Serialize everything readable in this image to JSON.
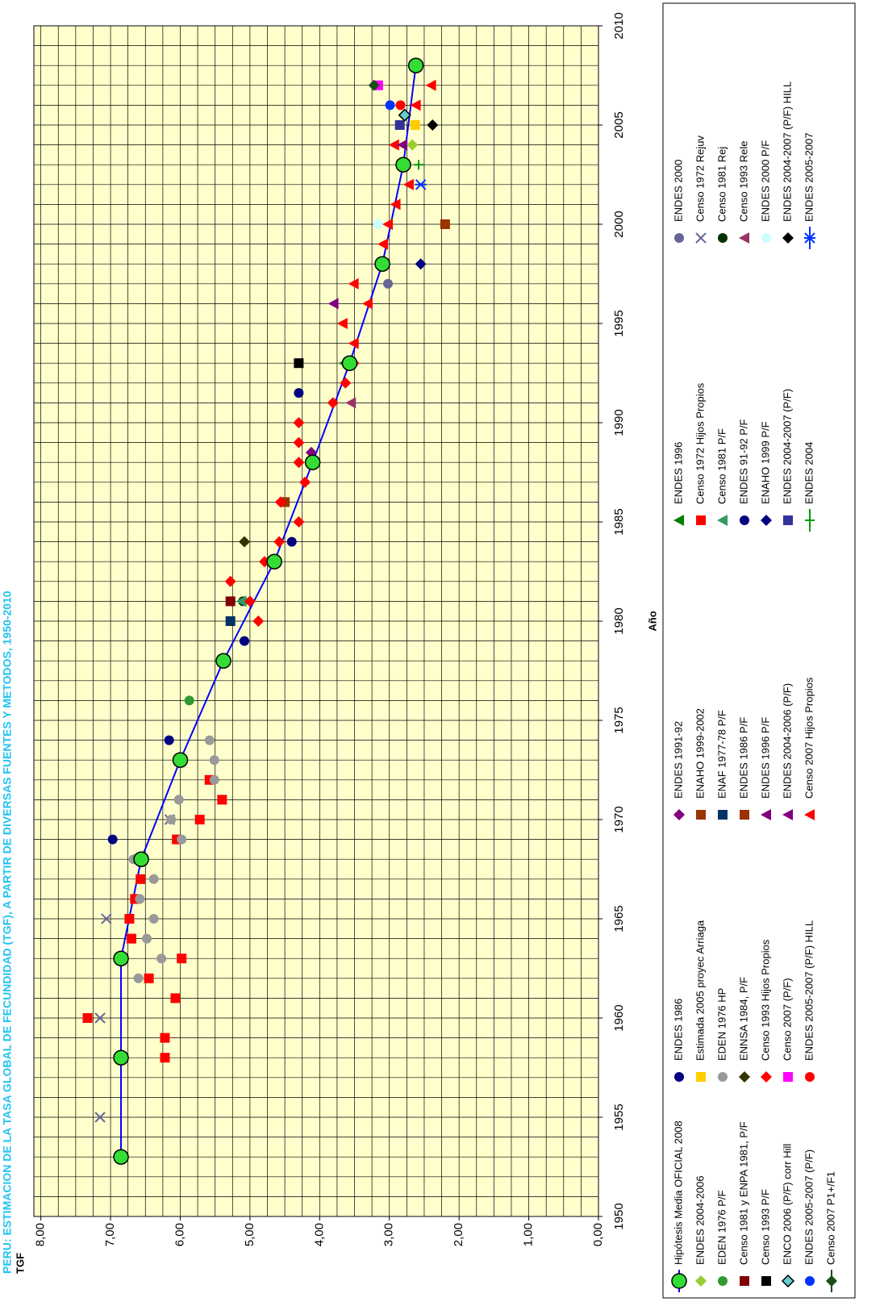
{
  "chart_data": {
    "type": "scatter",
    "title": "PERU: ESTIMACION DE LA TASA GLOBAL DE FECUNDIDAD (TGF), A PARTIR DE DIVERSAS FUENTES Y METODOS, 1950-2010",
    "ylabel": "TGF",
    "xlabel": "Año",
    "xlim": [
      1950,
      2010
    ],
    "ylim": [
      0,
      8.1
    ],
    "xticks": [
      1950,
      1955,
      1960,
      1965,
      1970,
      1975,
      1980,
      1985,
      1990,
      1995,
      2000,
      2005,
      2010
    ],
    "yticks": [
      {
        "value": 0,
        "label": "0,00"
      },
      {
        "value": 1,
        "label": "1,00"
      },
      {
        "value": 2,
        "label": "2,00"
      },
      {
        "value": 3,
        "label": "3,00"
      },
      {
        "value": 4,
        "label": "4,00"
      },
      {
        "value": 5,
        "label": "5,00"
      },
      {
        "value": 6,
        "label": "6,00"
      },
      {
        "value": 7,
        "label": "7,00"
      },
      {
        "value": 8,
        "label": "8,00"
      }
    ],
    "ygrid": [
      0,
      0.25,
      0.5,
      0.75,
      1,
      1.25,
      1.5,
      1.75,
      2,
      2.25,
      2.5,
      2.75,
      3,
      3.25,
      3.5,
      3.75,
      4,
      4.25,
      4.5,
      4.75,
      5,
      5.25,
      5.5,
      5.75,
      6,
      6.25,
      6.5,
      6.75,
      7,
      7.25,
      7.5,
      7.75,
      8
    ],
    "xgrid": [
      1950,
      1951,
      1952,
      1953,
      1954,
      1955,
      1956,
      1957,
      1958,
      1959,
      1960,
      1961,
      1962,
      1963,
      1964,
      1965,
      1966,
      1967,
      1968,
      1969,
      1970,
      1971,
      1972,
      1973,
      1974,
      1975,
      1976,
      1977,
      1978,
      1979,
      1980,
      1981,
      1982,
      1983,
      1984,
      1985,
      1986,
      1987,
      1988,
      1989,
      1990,
      1991,
      1992,
      1993,
      1994,
      1995,
      1996,
      1997,
      1998,
      1999,
      2000,
      2001,
      2002,
      2003,
      2004,
      2005,
      2006,
      2007,
      2008,
      2009,
      2010
    ],
    "grid": true,
    "background": "#ffffcc",
    "series": [
      {
        "name": "Hipótesis Media OFICIAL 2008",
        "color": "#0000ff",
        "marker_color": "#33dd33",
        "marker": "circle",
        "line": true,
        "x": [
          1953,
          1958,
          1963,
          1968,
          1973,
          1978,
          1983,
          1988,
          1993,
          1998,
          2003,
          2008
        ],
        "values": [
          6.85,
          6.85,
          6.85,
          6.56,
          6.0,
          5.38,
          4.65,
          4.1,
          3.57,
          3.1,
          2.8,
          2.62
        ]
      },
      {
        "name": "ENDES 2004-2006",
        "color": "#99cc33",
        "marker": "diamond",
        "x": [
          2004
        ],
        "values": [
          2.67
        ]
      },
      {
        "name": "EDEN 1976 P/F",
        "color": "#339933",
        "marker": "circle",
        "x": [
          1976
        ],
        "values": [
          5.87
        ]
      },
      {
        "name": "Censo 1981 y ENPA 1981, P/F",
        "color": "#800000",
        "marker": "square",
        "x": [
          1981
        ],
        "values": [
          5.28
        ]
      },
      {
        "name": "Censo 1993 P/F",
        "color": "#000000",
        "marker": "square",
        "x": [
          1993
        ],
        "values": [
          4.3
        ]
      },
      {
        "name": "ENCO 2006 (P/F) corr Hill",
        "color": "#66cccc",
        "marker": "diamond",
        "x": [
          2005.5
        ],
        "values": [
          2.78
        ]
      },
      {
        "name": "ENDES 2005-2007 (P/F)",
        "color": "#0033ff",
        "marker": "circle",
        "x": [
          2006
        ],
        "values": [
          2.99
        ]
      },
      {
        "name": "Censo 2007 P1+/F1",
        "color": "#1a4d1a",
        "marker": "diamond",
        "line": true,
        "x": [
          2007
        ],
        "values": [
          3.22
        ]
      },
      {
        "name": "ENDES 1986",
        "color": "#000080",
        "marker": "circle",
        "x": [
          1969,
          1974,
          1979,
          1984
        ],
        "values": [
          6.97,
          6.16,
          5.08,
          4.4
        ]
      },
      {
        "name": "Estimada 2005 proyec Arriaga",
        "color": "#ffcc00",
        "marker": "square",
        "x": [
          2005
        ],
        "values": [
          2.63
        ]
      },
      {
        "name": "EDEN 1976 HP",
        "color": "#999999",
        "marker": "circle",
        "x": [
          1962,
          1963,
          1964,
          1965,
          1966,
          1967,
          1968,
          1969,
          1970,
          1971,
          1972,
          1973,
          1974
        ],
        "values": [
          6.6,
          6.27,
          6.48,
          6.38,
          6.58,
          6.38,
          6.67,
          5.98,
          6.13,
          6.02,
          5.51,
          5.51,
          5.58
        ]
      },
      {
        "name": "ENNSA 1984, P/F",
        "color": "#333300",
        "marker": "diamond",
        "x": [
          1984
        ],
        "values": [
          5.08
        ]
      },
      {
        "name": "Censo 1993 Hijos Propios",
        "color": "#ff0000",
        "marker": "diamond",
        "x": [
          1980,
          1981,
          1982,
          1983,
          1984,
          1985,
          1986,
          1987,
          1988,
          1989,
          1990,
          1991,
          1992,
          1993
        ],
        "values": [
          4.88,
          5.0,
          5.28,
          4.79,
          4.58,
          4.3,
          4.56,
          4.21,
          4.3,
          4.3,
          4.3,
          3.81,
          3.63,
          3.51
        ]
      },
      {
        "name": "Censo 2007 (P/F)",
        "color": "#ff00ff",
        "marker": "square",
        "x": [
          2007
        ],
        "values": [
          3.16
        ]
      },
      {
        "name": "ENDES 2005-2007 (P/F) HILL",
        "color": "#ff0000",
        "marker": "circle",
        "x": [
          2006
        ],
        "values": [
          2.84
        ]
      },
      {
        "name": "ENDES 1991-92",
        "color": "#800080",
        "marker": "diamond",
        "x": [
          1988.5
        ],
        "values": [
          4.12
        ]
      },
      {
        "name": "ENAHO 1999-2002",
        "color": "#993300",
        "marker": "square",
        "x": [
          2000
        ],
        "values": [
          2.2
        ]
      },
      {
        "name": "ENAF 1977-78 P/F",
        "color": "#003366",
        "marker": "square",
        "x": [
          1980
        ],
        "values": [
          5.28
        ]
      },
      {
        "name": "ENDES 1986 P/F",
        "color": "#993300",
        "marker": "square",
        "x": [
          1986
        ],
        "values": [
          4.5
        ]
      },
      {
        "name": "ENDES 1996 P/F",
        "color": "#800080",
        "marker": "triangle",
        "x": [
          1996
        ],
        "values": [
          3.8
        ]
      },
      {
        "name": "ENDES 2004-2006 (P/F)",
        "color": "#800080",
        "marker": "triangle",
        "x": [
          2004
        ],
        "values": [
          2.81
        ]
      },
      {
        "name": "Censo 2007 Hijos Propios",
        "color": "#ff0000",
        "marker": "triangle",
        "x": [
          1994,
          1995,
          1996,
          1997,
          1998,
          1999,
          2000,
          2001,
          2002,
          2004,
          2006,
          2007
        ],
        "values": [
          3.51,
          3.67,
          3.31,
          3.51,
          3.07,
          3.09,
          3.02,
          2.91,
          2.72,
          2.93,
          2.62,
          2.4
        ]
      },
      {
        "name": "ENDES 1996",
        "color": "#008000",
        "marker": "triangle",
        "x": [
          1993
        ],
        "values": [
          3.65
        ]
      },
      {
        "name": "Censo 1972 Hijos Propios",
        "color": "#ff0000",
        "marker": "square",
        "x": [
          1958,
          1959,
          1960,
          1961,
          1962,
          1963,
          1964,
          1965,
          1966,
          1967,
          1968,
          1969,
          1970,
          1971,
          1972
        ],
        "values": [
          6.22,
          6.22,
          7.33,
          6.07,
          6.45,
          5.98,
          6.7,
          6.73,
          6.65,
          6.57,
          6.59,
          6.05,
          5.72,
          5.4,
          5.58
        ]
      },
      {
        "name": "Censo 1981 P/F",
        "color": "#339966",
        "marker": "triangle",
        "x": [
          1981
        ],
        "values": [
          5.12
        ]
      },
      {
        "name": "ENDES 91-92 P/F",
        "color": "#000080",
        "marker": "circle",
        "x": [
          1991.5
        ],
        "values": [
          4.3
        ]
      },
      {
        "name": "ENAHO 1999 P/F",
        "color": "#000080",
        "marker": "diamond",
        "x": [
          1998
        ],
        "values": [
          2.55
        ]
      },
      {
        "name": "ENDES 2004-2007 (P/F)",
        "color": "#333399",
        "marker": "square",
        "x": [
          2005
        ],
        "values": [
          2.85
        ]
      },
      {
        "name": "ENDES 2004",
        "color": "#009900",
        "marker": "plus",
        "line": true,
        "x": [
          2003
        ],
        "values": [
          2.58
        ]
      },
      {
        "name": "ENDES 2000",
        "color": "#666699",
        "marker": "circle",
        "x": [
          1997
        ],
        "values": [
          3.02
        ]
      },
      {
        "name": "Censo 1972 Rejuv",
        "color": "#666699",
        "marker": "x",
        "x": [
          1955,
          1960,
          1965,
          1970
        ],
        "values": [
          7.15,
          7.15,
          7.06,
          6.15
        ]
      },
      {
        "name": "Censo 1981 Rej",
        "color": "#003300",
        "marker": "circle",
        "x": [
          1981
        ],
        "values": [
          5.1
        ]
      },
      {
        "name": "Censo 1993 Rele",
        "color": "#993366",
        "marker": "triangle",
        "x": [
          1991
        ],
        "values": [
          3.55
        ]
      },
      {
        "name": "ENDES 2000 P/F",
        "color": "#ccffff",
        "marker": "circle",
        "x": [
          2000
        ],
        "values": [
          3.16
        ]
      },
      {
        "name": "ENDES 2004-2007 (P/F) HILL",
        "color": "#000000",
        "marker": "diamond",
        "x": [
          2005
        ],
        "values": [
          2.38
        ]
      },
      {
        "name": "ENDES 2005-2007",
        "color": "#0033ff",
        "marker": "asterisk",
        "line": true,
        "x": [
          2002
        ],
        "values": [
          2.55
        ]
      }
    ]
  }
}
